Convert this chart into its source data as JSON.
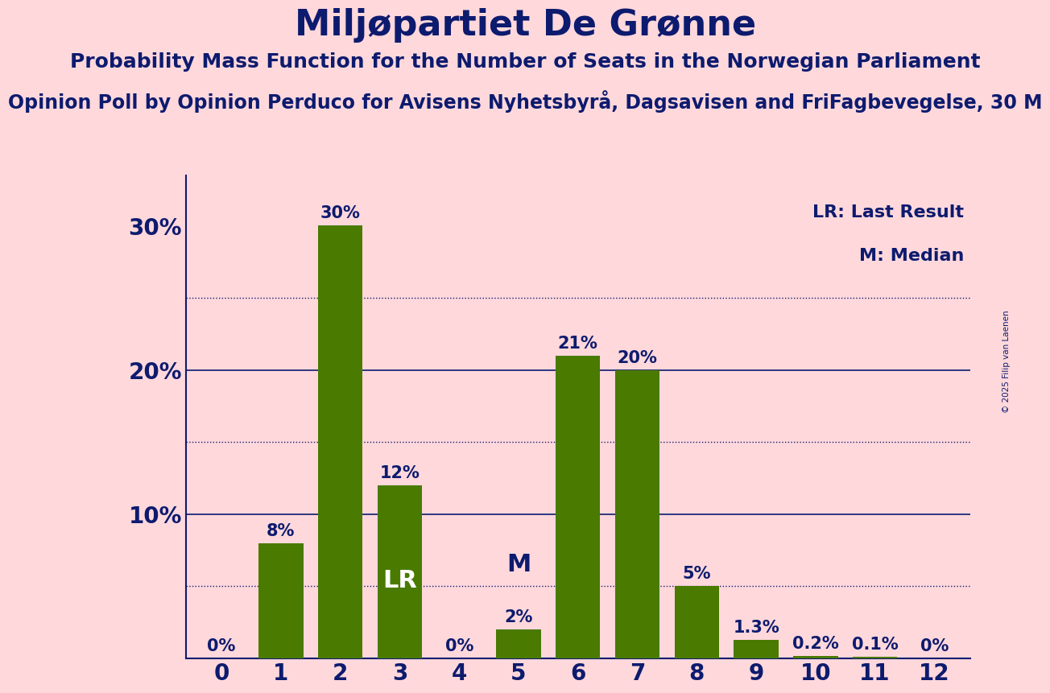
{
  "title": "Miljøpartiet De Grønne",
  "subtitle": "Probability Mass Function for the Number of Seats in the Norwegian Parliament",
  "subsubtitle": "Opinion Poll by Opinion Perduco for Avisens Nyhetsbyrå, Dagsavisen and FriFagbevegelse, 30 M",
  "copyright": "© 2025 Filip van Laenen",
  "categories": [
    0,
    1,
    2,
    3,
    4,
    5,
    6,
    7,
    8,
    9,
    10,
    11,
    12
  ],
  "values": [
    0.0,
    0.08,
    0.3,
    0.12,
    0.0,
    0.02,
    0.21,
    0.2,
    0.05,
    0.013,
    0.002,
    0.001,
    0.0
  ],
  "labels": [
    "0%",
    "8%",
    "30%",
    "12%",
    "0%",
    "2%",
    "21%",
    "20%",
    "5%",
    "1.3%",
    "0.2%",
    "0.1%",
    "0%"
  ],
  "bar_color": "#4a7a00",
  "background_color": "#ffd8dc",
  "text_color": "#0d1b6e",
  "axis_color": "#0d1b6e",
  "lr_bar": 3,
  "m_bar": 5,
  "lr_label": "LR",
  "m_label": "M",
  "legend_lr": "LR: Last Result",
  "legend_m": "M: Median",
  "yticks": [
    0.0,
    0.1,
    0.2,
    0.3
  ],
  "ytick_labels": [
    "",
    "10%",
    "20%",
    "30%"
  ],
  "solid_yticks": [
    0.1,
    0.2
  ],
  "dotted_yticks": [
    0.05,
    0.15,
    0.25
  ],
  "title_fontsize": 32,
  "subtitle_fontsize": 18,
  "subsubtitle_fontsize": 17,
  "label_fontsize": 15,
  "ytick_fontsize": 20,
  "xtick_fontsize": 20,
  "lr_m_fontsize": 22
}
